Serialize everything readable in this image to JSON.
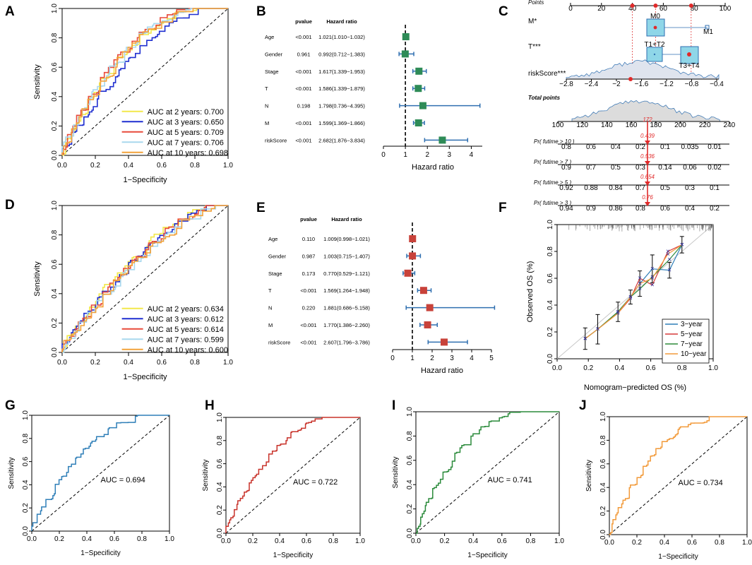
{
  "figure": {
    "panel_letters": [
      "A",
      "B",
      "C",
      "D",
      "E",
      "F",
      "G",
      "H",
      "I",
      "J"
    ]
  },
  "chart_data": [
    {
      "panel": "A",
      "type": "line",
      "xlabel": "1−Specificity",
      "ylabel": "Sensitivity",
      "xlim": [
        0,
        1
      ],
      "ylim": [
        0,
        1
      ],
      "ticks": [
        "0.0",
        "0.2",
        "0.4",
        "0.6",
        "0.8",
        "1.0"
      ],
      "legend_position": "bottom-right",
      "series": [
        {
          "name": "AUC at 2 years: 0.700",
          "color": "#f2e84a",
          "auc": 0.7
        },
        {
          "name": "AUC at 3 years: 0.650",
          "color": "#1f2fd0",
          "auc": 0.65
        },
        {
          "name": "AUC at 5 years: 0.709",
          "color": "#e84a3a",
          "auc": 0.709
        },
        {
          "name": "AUC at 7 years: 0.706",
          "color": "#a8d8ee",
          "auc": 0.706
        },
        {
          "name": "AUC at 10 years: 0.698",
          "color": "#f2a23a",
          "auc": 0.698
        }
      ]
    },
    {
      "panel": "B",
      "type": "forest",
      "header_pvalue": "pvalue",
      "header_hr": "Hazard ratio",
      "xlabel": "Hazard ratio",
      "xlim": [
        0,
        4.5
      ],
      "xticks": [
        0,
        1,
        2,
        3,
        4
      ],
      "marker_color": "#2e8b57",
      "ci_color": "#2f6fb0",
      "rows": [
        {
          "label": "Age",
          "pvalue": "<0.001",
          "hr_text": "1.021(1.010−1.032)",
          "hr": 1.021,
          "lo": 1.01,
          "hi": 1.032
        },
        {
          "label": "Gender",
          "pvalue": "0.961",
          "hr_text": "0.992(0.712−1.383)",
          "hr": 0.992,
          "lo": 0.712,
          "hi": 1.383
        },
        {
          "label": "Stage",
          "pvalue": "<0.001",
          "hr_text": "1.617(1.339−1.953)",
          "hr": 1.617,
          "lo": 1.339,
          "hi": 1.953
        },
        {
          "label": "T",
          "pvalue": "<0.001",
          "hr_text": "1.586(1.339−1.879)",
          "hr": 1.586,
          "lo": 1.339,
          "hi": 1.879
        },
        {
          "label": "N",
          "pvalue": "0.198",
          "hr_text": "1.798(0.736−4.395)",
          "hr": 1.798,
          "lo": 0.736,
          "hi": 4.395
        },
        {
          "label": "M",
          "pvalue": "<0.001",
          "hr_text": "1.599(1.369−1.866)",
          "hr": 1.599,
          "lo": 1.369,
          "hi": 1.866
        },
        {
          "label": "riskScore",
          "pvalue": "<0.001",
          "hr_text": "2.682(1.876−3.834)",
          "hr": 2.682,
          "lo": 1.876,
          "hi": 3.834
        }
      ]
    },
    {
      "panel": "C",
      "type": "nomogram",
      "points_label": "Points",
      "points_ticks": [
        "0",
        "20",
        "40",
        "60",
        "80",
        "100"
      ],
      "m_label": "M*",
      "m_levels": [
        "M0",
        "M1"
      ],
      "t_label": "T***",
      "t_levels": [
        "T1+T2",
        "T3+T4"
      ],
      "risk_label": "riskScore***",
      "risk_ticks": [
        "−2.8",
        "−2.4",
        "−2",
        "−1.6",
        "−1.2",
        "−0.8",
        "−0.4"
      ],
      "total_label": "Total points",
      "total_ticks": [
        "100",
        "120",
        "140",
        "160",
        "180",
        "200",
        "220",
        "240"
      ],
      "total_value": "172",
      "rows": [
        {
          "label": "Pr( futime > 10 )",
          "ticks": [
            "0.8",
            "0.6",
            "0.4",
            "0.2",
            "0.1",
            "0.035",
            "0.01"
          ],
          "value": "0.439"
        },
        {
          "label": "Pr( futime > 7 )",
          "ticks": [
            "0.9",
            "0.7",
            "0.5",
            "0.3",
            "0.14",
            "0.06",
            "0.02"
          ],
          "value": "0.536"
        },
        {
          "label": "Pr( futime > 5 )",
          "ticks": [
            "0.92",
            "0.88",
            "0.84",
            "0.7",
            "0.5",
            "0.3",
            "0.1"
          ],
          "value": "0.654"
        },
        {
          "label": "Pr( futime > 3 )",
          "ticks": [
            "0.94",
            "0.9",
            "0.86",
            "0.8",
            "0.6",
            "0.4",
            "0.2"
          ],
          "value": "0.76"
        }
      ]
    },
    {
      "panel": "D",
      "type": "line",
      "xlabel": "1−Specificity",
      "ylabel": "Sensitivity",
      "xlim": [
        0,
        1
      ],
      "ylim": [
        0,
        1
      ],
      "ticks": [
        "0.0",
        "0.2",
        "0.4",
        "0.6",
        "0.8",
        "1.0"
      ],
      "legend_position": "bottom-right",
      "series": [
        {
          "name": "AUC at 2 years: 0.634",
          "color": "#f2e84a",
          "auc": 0.634
        },
        {
          "name": "AUC at 3 years: 0.612",
          "color": "#1f2fd0",
          "auc": 0.612
        },
        {
          "name": "AUC at 5 years: 0.614",
          "color": "#e84a3a",
          "auc": 0.614
        },
        {
          "name": "AUC at 7 years: 0.599",
          "color": "#a8d8ee",
          "auc": 0.599
        },
        {
          "name": "AUC at 10 years: 0.600",
          "color": "#f2a23a",
          "auc": 0.6
        }
      ]
    },
    {
      "panel": "E",
      "type": "forest",
      "header_pvalue": "pvalue",
      "header_hr": "Hazard ratio",
      "xlabel": "Hazard ratio",
      "xlim": [
        0,
        5
      ],
      "xticks": [
        0,
        1,
        2,
        3,
        4,
        5
      ],
      "marker_color": "#c8423a",
      "ci_color": "#2f6fb0",
      "rows": [
        {
          "label": "Age",
          "pvalue": "0.110",
          "hr_text": "1.009(0.998−1.021)",
          "hr": 1.009,
          "lo": 0.998,
          "hi": 1.021
        },
        {
          "label": "Gender",
          "pvalue": "0.987",
          "hr_text": "1.003(0.715−1.407)",
          "hr": 1.003,
          "lo": 0.715,
          "hi": 1.407
        },
        {
          "label": "Stage",
          "pvalue": "0.173",
          "hr_text": "0.770(0.529−1.121)",
          "hr": 0.77,
          "lo": 0.529,
          "hi": 1.121
        },
        {
          "label": "T",
          "pvalue": "<0.001",
          "hr_text": "1.569(1.264−1.948)",
          "hr": 1.569,
          "lo": 1.264,
          "hi": 1.948
        },
        {
          "label": "N",
          "pvalue": "0.220",
          "hr_text": "1.881(0.686−5.158)",
          "hr": 1.881,
          "lo": 0.686,
          "hi": 5.158
        },
        {
          "label": "M",
          "pvalue": "<0.001",
          "hr_text": "1.770(1.386−2.260)",
          "hr": 1.77,
          "lo": 1.386,
          "hi": 2.26
        },
        {
          "label": "riskScore",
          "pvalue": "<0.001",
          "hr_text": "2.607(1.796−3.786)",
          "hr": 2.607,
          "lo": 1.796,
          "hi": 3.786
        }
      ]
    },
    {
      "panel": "F",
      "type": "line",
      "xlabel": "Nomogram−predicted OS (%)",
      "ylabel": "Observed OS (%)",
      "xlim": [
        0,
        1
      ],
      "ylim": [
        0,
        1
      ],
      "ticks": [
        "0.0",
        "0.2",
        "0.4",
        "0.6",
        "0.8",
        "1.0"
      ],
      "legend_position": "bottom-right",
      "series": [
        {
          "name": "3−year",
          "color": "#2f7fb8",
          "x": [
            0.18,
            0.26,
            0.39,
            0.47,
            0.53,
            0.61,
            0.72,
            0.8
          ],
          "y": [
            0.15,
            0.22,
            0.35,
            0.46,
            0.56,
            0.67,
            0.66,
            0.85
          ]
        },
        {
          "name": "5−year",
          "color": "#d63a3a",
          "x": [
            0.18,
            0.26,
            0.39,
            0.47,
            0.53,
            0.61,
            0.71,
            0.8
          ],
          "y": [
            0.15,
            0.22,
            0.34,
            0.45,
            0.6,
            0.55,
            0.8,
            0.85
          ]
        },
        {
          "name": "7−year",
          "color": "#2e8b3a",
          "x": [
            0.18,
            0.26,
            0.39,
            0.47,
            0.53,
            0.61,
            0.72,
            0.8
          ],
          "y": [
            0.15,
            0.22,
            0.35,
            0.46,
            0.52,
            0.61,
            0.74,
            0.85
          ]
        },
        {
          "name": "10−year",
          "color": "#f29a3a",
          "x": [
            0.18,
            0.26,
            0.39,
            0.47,
            0.53,
            0.61,
            0.71,
            0.8
          ],
          "y": [
            0.15,
            0.22,
            0.34,
            0.46,
            0.56,
            0.6,
            0.78,
            0.85
          ]
        }
      ]
    },
    {
      "panel": "G",
      "type": "line",
      "xlabel": "1−Specificity",
      "ylabel": "Sensitivity",
      "xlim": [
        0,
        1
      ],
      "ylim": [
        0,
        1
      ],
      "ticks": [
        "0.0",
        "0.2",
        "0.4",
        "0.6",
        "0.8",
        "1.0"
      ],
      "auc_label": "AUC = 0.694",
      "auc": 0.694,
      "color": "#2f7fb8"
    },
    {
      "panel": "H",
      "type": "line",
      "xlabel": "1−Specificity",
      "ylabel": "Sensitivity",
      "xlim": [
        0,
        1
      ],
      "ylim": [
        0,
        1
      ],
      "ticks": [
        "0.0",
        "0.2",
        "0.4",
        "0.6",
        "0.8",
        "1.0"
      ],
      "auc_label": "AUC = 0.722",
      "auc": 0.722,
      "color": "#c8322a"
    },
    {
      "panel": "I",
      "type": "line",
      "xlabel": "1−Specificity",
      "ylabel": "Sensitivity",
      "xlim": [
        0,
        1
      ],
      "ylim": [
        0,
        1
      ],
      "ticks": [
        "0.0",
        "0.2",
        "0.4",
        "0.6",
        "0.8",
        "1.0"
      ],
      "auc_label": "AUC = 0.741",
      "auc": 0.741,
      "color": "#2a8a3a"
    },
    {
      "panel": "J",
      "type": "line",
      "xlabel": "1−Specificity",
      "ylabel": "Sensitivity",
      "xlim": [
        0,
        1
      ],
      "ylim": [
        0,
        1
      ],
      "ticks": [
        "0.0",
        "0.2",
        "0.4",
        "0.6",
        "0.8",
        "1.0"
      ],
      "auc_label": "AUC = 0.734",
      "auc": 0.734,
      "color": "#f29a3a"
    }
  ]
}
